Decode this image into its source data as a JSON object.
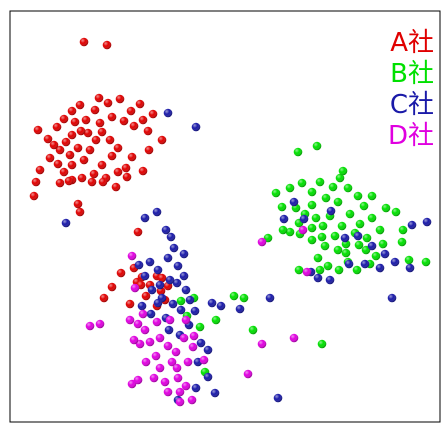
{
  "chart_data": {
    "type": "scatter",
    "title": "",
    "xlabel": "",
    "ylabel": "",
    "grid": false,
    "axes_ticks": false,
    "legend_position": "top-right",
    "series": [
      {
        "name": "A社",
        "color": "#e00000",
        "points": [
          [
            84,
            42
          ],
          [
            107,
            45
          ],
          [
            80,
            105
          ],
          [
            99,
            98
          ],
          [
            108,
            103
          ],
          [
            86,
            120
          ],
          [
            120,
            99
          ],
          [
            131,
            111
          ],
          [
            140,
            104
          ],
          [
            112,
            117
          ],
          [
            124,
            121
          ],
          [
            143,
            120
          ],
          [
            153,
            114
          ],
          [
            148,
            131
          ],
          [
            162,
            140
          ],
          [
            38,
            130
          ],
          [
            48,
            139
          ],
          [
            57,
            127
          ],
          [
            64,
            119
          ],
          [
            72,
            111
          ],
          [
            66,
            142
          ],
          [
            72,
            135
          ],
          [
            60,
            150
          ],
          [
            70,
            155
          ],
          [
            78,
            148
          ],
          [
            84,
            160
          ],
          [
            90,
            150
          ],
          [
            96,
            140
          ],
          [
            102,
            132
          ],
          [
            110,
            140
          ],
          [
            118,
            148
          ],
          [
            112,
            156
          ],
          [
            102,
            165
          ],
          [
            94,
            174
          ],
          [
            106,
            178
          ],
          [
            118,
            172
          ],
          [
            126,
            168
          ],
          [
            132,
            157
          ],
          [
            116,
            187
          ],
          [
            103,
            182
          ],
          [
            92,
            182
          ],
          [
            82,
            178
          ],
          [
            72,
            180
          ],
          [
            64,
            172
          ],
          [
            58,
            164
          ],
          [
            50,
            158
          ],
          [
            40,
            170
          ],
          [
            36,
            182
          ],
          [
            34,
            196
          ],
          [
            72,
            165
          ],
          [
            60,
            183
          ],
          [
            69,
            181
          ],
          [
            78,
            204
          ],
          [
            80,
            212
          ],
          [
            134,
            126
          ],
          [
            149,
            150
          ],
          [
            143,
            171
          ],
          [
            127,
            177
          ],
          [
            88,
            133
          ],
          [
            54,
            145
          ],
          [
            95,
            110
          ],
          [
            100,
            123
          ],
          [
            75,
            122
          ],
          [
            81,
            131
          ],
          [
            138,
            232
          ],
          [
            112,
            287
          ],
          [
            104,
            298
          ],
          [
            121,
            273
          ],
          [
            134,
            268
          ],
          [
            137,
            282
          ],
          [
            142,
            277
          ],
          [
            157,
            276
          ],
          [
            161,
            291
          ],
          [
            165,
            300
          ],
          [
            157,
            306
          ],
          [
            146,
            296
          ],
          [
            141,
            285
          ],
          [
            130,
            304
          ],
          [
            150,
            285
          ],
          [
            162,
            278
          ],
          [
            168,
            286
          ]
        ]
      },
      {
        "name": "B社",
        "color": "#00e000",
        "points": [
          [
            298,
            152
          ],
          [
            317,
            146
          ],
          [
            276,
            193
          ],
          [
            290,
            188
          ],
          [
            302,
            183
          ],
          [
            312,
            192
          ],
          [
            320,
            182
          ],
          [
            333,
            187
          ],
          [
            340,
            178
          ],
          [
            343,
            171
          ],
          [
            348,
            188
          ],
          [
            358,
            196
          ],
          [
            364,
            206
          ],
          [
            372,
            196
          ],
          [
            386,
            208
          ],
          [
            396,
            212
          ],
          [
            403,
            230
          ],
          [
            282,
            207
          ],
          [
            296,
            208
          ],
          [
            305,
            214
          ],
          [
            316,
            218
          ],
          [
            323,
            226
          ],
          [
            330,
            216
          ],
          [
            338,
            202
          ],
          [
            350,
            214
          ],
          [
            360,
            224
          ],
          [
            372,
            218
          ],
          [
            380,
            230
          ],
          [
            367,
            238
          ],
          [
            355,
            233
          ],
          [
            346,
            244
          ],
          [
            335,
            236
          ],
          [
            325,
            246
          ],
          [
            312,
            240
          ],
          [
            300,
            234
          ],
          [
            290,
            232
          ],
          [
            318,
            258
          ],
          [
            328,
            266
          ],
          [
            339,
            270
          ],
          [
            348,
            262
          ],
          [
            357,
            270
          ],
          [
            370,
            264
          ],
          [
            320,
            270
          ],
          [
            299,
            270
          ],
          [
            268,
            238
          ],
          [
            312,
            205
          ],
          [
            326,
            198
          ],
          [
            342,
            226
          ],
          [
            359,
            245
          ],
          [
            366,
            250
          ],
          [
            383,
            244
          ],
          [
            402,
            242
          ],
          [
            409,
            260
          ],
          [
            426,
            262
          ],
          [
            346,
            253
          ],
          [
            312,
            228
          ],
          [
            299,
            223
          ],
          [
            322,
            237
          ],
          [
            338,
            250
          ],
          [
            244,
            298
          ],
          [
            234,
            296
          ],
          [
            253,
            330
          ],
          [
            322,
            344
          ],
          [
            200,
            327
          ],
          [
            205,
            372
          ],
          [
            194,
            298
          ],
          [
            181,
            301
          ],
          [
            187,
            316
          ],
          [
            216,
            320
          ],
          [
            283,
            230
          ],
          [
            376,
            256
          ]
        ]
      },
      {
        "name": "C社",
        "color": "#1a1aa8",
        "points": [
          [
            168,
            113
          ],
          [
            196,
            127
          ],
          [
            66,
            223
          ],
          [
            145,
            218
          ],
          [
            157,
            212
          ],
          [
            166,
            230
          ],
          [
            171,
            237
          ],
          [
            174,
            248
          ],
          [
            168,
            258
          ],
          [
            178,
            266
          ],
          [
            184,
            276
          ],
          [
            177,
            283
          ],
          [
            186,
            290
          ],
          [
            190,
            300
          ],
          [
            158,
            270
          ],
          [
            150,
            262
          ],
          [
            145,
            276
          ],
          [
            152,
            290
          ],
          [
            162,
            298
          ],
          [
            173,
            304
          ],
          [
            181,
            310
          ],
          [
            195,
            311
          ],
          [
            189,
            325
          ],
          [
            180,
            335
          ],
          [
            169,
            330
          ],
          [
            151,
            314
          ],
          [
            142,
            306
          ],
          [
            201,
            343
          ],
          [
            208,
            350
          ],
          [
            212,
            303
          ],
          [
            221,
            306
          ],
          [
            240,
            309
          ],
          [
            270,
            298
          ],
          [
            304,
            219
          ],
          [
            331,
            211
          ],
          [
            345,
            238
          ],
          [
            358,
            236
          ],
          [
            372,
            246
          ],
          [
            385,
            254
          ],
          [
            395,
            262
          ],
          [
            410,
            268
          ],
          [
            427,
            222
          ],
          [
            412,
            225
          ],
          [
            380,
            268
          ],
          [
            392,
            298
          ],
          [
            294,
            202
          ],
          [
            284,
            219
          ],
          [
            349,
            264
          ],
          [
            184,
            254
          ],
          [
            170,
            280
          ],
          [
            158,
            303
          ],
          [
            160,
            285
          ],
          [
            139,
            265
          ],
          [
            166,
            318
          ],
          [
            198,
            362
          ],
          [
            215,
            393
          ],
          [
            278,
            398
          ],
          [
            208,
            377
          ],
          [
            196,
            388
          ],
          [
            178,
            400
          ],
          [
            311,
            272
          ],
          [
            330,
            280
          ],
          [
            365,
            264
          ],
          [
            318,
            278
          ]
        ]
      },
      {
        "name": "D社",
        "color": "#e000e0",
        "points": [
          [
            132,
            256
          ],
          [
            90,
            326
          ],
          [
            100,
            324
          ],
          [
            135,
            288
          ],
          [
            130,
            320
          ],
          [
            138,
            324
          ],
          [
            145,
            330
          ],
          [
            150,
            342
          ],
          [
            160,
            338
          ],
          [
            168,
            346
          ],
          [
            176,
            352
          ],
          [
            172,
            362
          ],
          [
            160,
            368
          ],
          [
            154,
            378
          ],
          [
            165,
            382
          ],
          [
            178,
            378
          ],
          [
            186,
            386
          ],
          [
            180,
            392
          ],
          [
            168,
            392
          ],
          [
            132,
            384
          ],
          [
            138,
            380
          ],
          [
            140,
            344
          ],
          [
            134,
            340
          ],
          [
            184,
            338
          ],
          [
            193,
            347
          ],
          [
            146,
            362
          ],
          [
            156,
            356
          ],
          [
            177,
            368
          ],
          [
            188,
            362
          ],
          [
            262,
            242
          ],
          [
            262,
            344
          ],
          [
            294,
            338
          ],
          [
            248,
            374
          ],
          [
            307,
            272
          ],
          [
            303,
            230
          ],
          [
            180,
            402
          ],
          [
            192,
            400
          ],
          [
            143,
            314
          ],
          [
            157,
            322
          ],
          [
            170,
            320
          ],
          [
            186,
            320
          ],
          [
            194,
            336
          ],
          [
            204,
            360
          ]
        ]
      }
    ]
  }
}
